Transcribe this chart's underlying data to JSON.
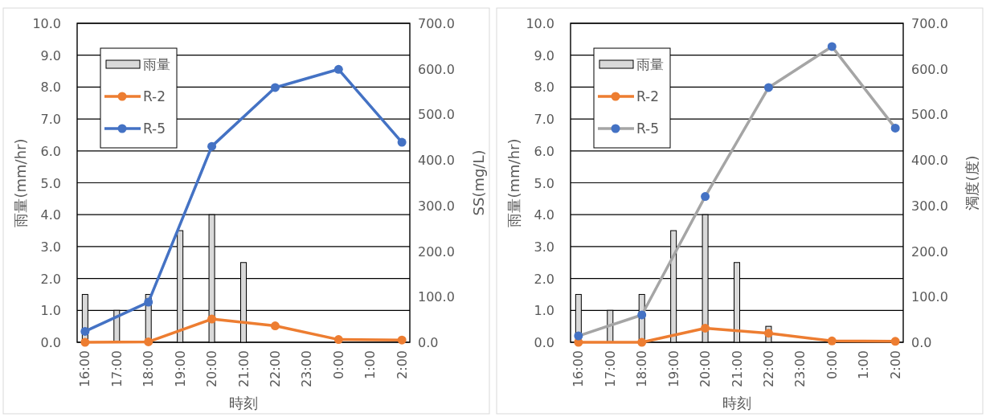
{
  "chart_data": [
    {
      "type": "bar",
      "xlabel": "時刻",
      "ylabel": "雨量(mm/hr)",
      "y2label": "SS(mg/L)",
      "categories": [
        "16:00",
        "17:00",
        "18:00",
        "19:00",
        "20:00",
        "21:00",
        "22:00",
        "23:00",
        "0:00",
        "1:00",
        "2:00"
      ],
      "series": [
        {
          "name": "雨量",
          "type": "bar",
          "color": "#d9d9d9",
          "values": [
            1.5,
            1.0,
            1.5,
            3.5,
            4.0,
            2.5,
            null,
            0,
            0,
            0,
            0
          ]
        },
        {
          "name": "R-2",
          "type": "line",
          "axis": "y2",
          "color": "#ed7d31",
          "values": [
            0,
            null,
            1,
            null,
            51,
            null,
            36,
            null,
            6,
            null,
            5
          ]
        },
        {
          "name": "R-5",
          "type": "line",
          "axis": "y2",
          "color": "#4472c4",
          "values": [
            24,
            null,
            88,
            null,
            430,
            null,
            559,
            null,
            599,
            null,
            439
          ]
        }
      ],
      "ylim": [
        0,
        10
      ],
      "yticks": [
        {
          "value": 0,
          "label": "0.0"
        },
        {
          "value": 1,
          "label": "1.0"
        },
        {
          "value": 2,
          "label": "2.0"
        },
        {
          "value": 3,
          "label": "3.0"
        },
        {
          "value": 4,
          "label": "4.0"
        },
        {
          "value": 5,
          "label": "5.0"
        },
        {
          "value": 6,
          "label": "6.0"
        },
        {
          "value": 7,
          "label": "7.0"
        },
        {
          "value": 8,
          "label": "8.0"
        },
        {
          "value": 9,
          "label": "9.0"
        },
        {
          "value": 10,
          "label": "10.0"
        }
      ],
      "y2lim": [
        0,
        700
      ],
      "y2ticks": [
        {
          "value": 0,
          "label": "0.0"
        },
        {
          "value": 100,
          "label": "100.0"
        },
        {
          "value": 200,
          "label": "200.0"
        },
        {
          "value": 300,
          "label": "300.0"
        },
        {
          "value": 400,
          "label": "400.0"
        },
        {
          "value": 500,
          "label": "500.0"
        },
        {
          "value": 600,
          "label": "600.0"
        },
        {
          "value": 700,
          "label": "700.0"
        }
      ],
      "grid": "y",
      "legend": "top left",
      "marker": "circle"
    },
    {
      "type": "bar",
      "xlabel": "時刻",
      "ylabel": "雨量(mm/hr)",
      "y2label": "濁度(度)",
      "categories": [
        "16:00",
        "17:00",
        "18:00",
        "19:00",
        "20:00",
        "21:00",
        "22:00",
        "23:00",
        "0:00",
        "1:00",
        "2:00"
      ],
      "series": [
        {
          "name": "雨量",
          "type": "bar",
          "color": "#d9d9d9",
          "values": [
            1.5,
            1.0,
            1.5,
            3.5,
            4.0,
            2.5,
            0.5,
            0,
            0,
            0,
            0
          ]
        },
        {
          "name": "R-2",
          "type": "line",
          "axis": "y2",
          "color": "#ed7d31",
          "values": [
            0,
            null,
            0,
            null,
            31,
            null,
            20,
            null,
            3,
            null,
            2
          ]
        },
        {
          "name": "R-5",
          "type": "line",
          "axis": "y2",
          "color": "#a5a5a5",
          "colors": [
            "#4472c4",
            null,
            "#4472c4",
            null,
            "#4472c4",
            null,
            "#4472c4",
            null,
            "#4472c4",
            null,
            "#4472c4"
          ],
          "values": [
            14,
            null,
            60,
            null,
            320,
            null,
            559,
            null,
            649,
            null,
            470
          ]
        }
      ],
      "ylim": [
        0,
        10
      ],
      "yticks": [
        {
          "value": 0,
          "label": "0.0"
        },
        {
          "value": 1,
          "label": "1.0"
        },
        {
          "value": 2,
          "label": "2.0"
        },
        {
          "value": 3,
          "label": "3.0"
        },
        {
          "value": 4,
          "label": "4.0"
        },
        {
          "value": 5,
          "label": "5.0"
        },
        {
          "value": 6,
          "label": "6.0"
        },
        {
          "value": 7,
          "label": "7.0"
        },
        {
          "value": 8,
          "label": "8.0"
        },
        {
          "value": 9,
          "label": "9.0"
        },
        {
          "value": 10,
          "label": "10.0"
        }
      ],
      "y2lim": [
        0,
        700
      ],
      "y2ticks": [
        {
          "value": 0,
          "label": "0.0"
        },
        {
          "value": 100,
          "label": "100.0"
        },
        {
          "value": 200,
          "label": "200.0"
        },
        {
          "value": 300,
          "label": "300.0"
        },
        {
          "value": 400,
          "label": "400.0"
        },
        {
          "value": 500,
          "label": "500.0"
        },
        {
          "value": 600,
          "label": "600.0"
        },
        {
          "value": 700,
          "label": "700.0"
        }
      ],
      "grid": "y",
      "legend": "top left",
      "marker": "circle"
    }
  ]
}
